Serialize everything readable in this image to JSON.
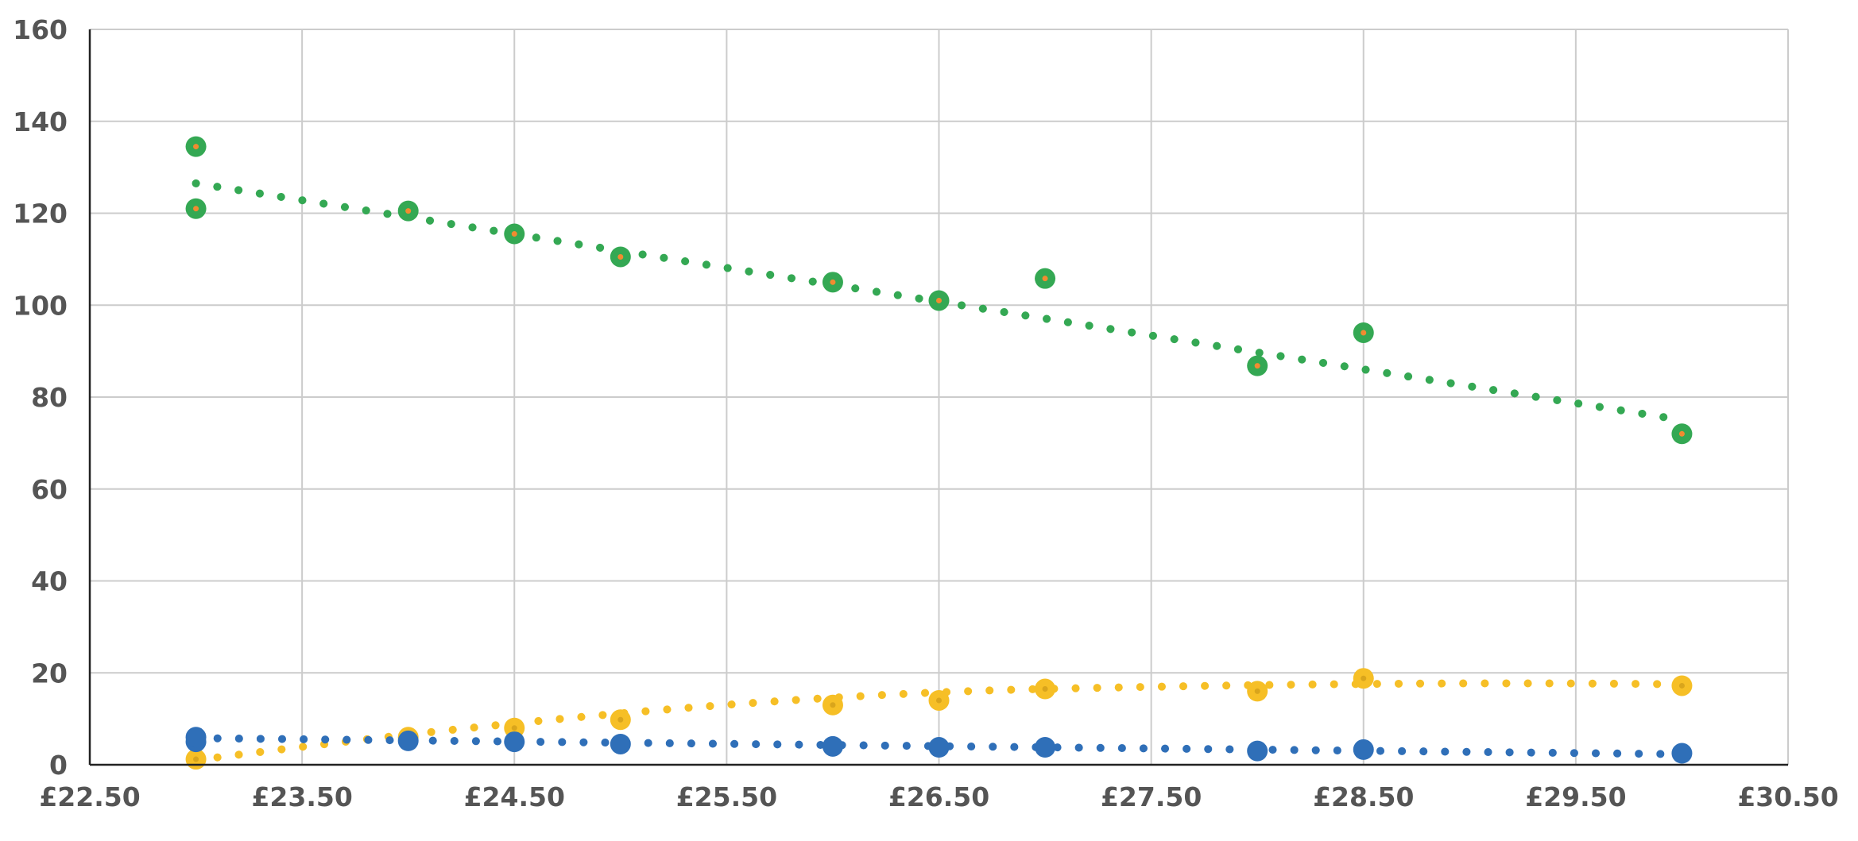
{
  "chart_data": {
    "type": "scatter",
    "title": "",
    "xlabel": "",
    "ylabel": "",
    "xlim": [
      22.5,
      30.5
    ],
    "ylim": [
      0,
      160
    ],
    "x_tick_labels": [
      "£22.50",
      "£23.50",
      "£24.50",
      "£25.50",
      "£26.50",
      "£27.50",
      "£28.50",
      "£29.50",
      "£30.50"
    ],
    "y_tick_labels": [
      "0",
      "20",
      "40",
      "60",
      "80",
      "100",
      "120",
      "140",
      "160"
    ],
    "grid": true,
    "legend": "none",
    "series": [
      {
        "color": "#34a853",
        "marker_center_color": "#f28b30",
        "trendline": "dotted",
        "points": [
          {
            "x": 23.0,
            "y": 134.5
          },
          {
            "x": 23.0,
            "y": 121.0
          },
          {
            "x": 24.0,
            "y": 120.5
          },
          {
            "x": 24.5,
            "y": 115.5
          },
          {
            "x": 25.0,
            "y": 110.5
          },
          {
            "x": 26.0,
            "y": 105.0
          },
          {
            "x": 26.5,
            "y": 101.0
          },
          {
            "x": 27.0,
            "y": 105.8
          },
          {
            "x": 28.0,
            "y": 86.8
          },
          {
            "x": 28.5,
            "y": 94.0
          },
          {
            "x": 30.0,
            "y": 72.0
          }
        ],
        "trend": {
          "x_start": 23.0,
          "y_start": 126.5,
          "x_end": 30.0,
          "y_end": 75.0
        }
      },
      {
        "color": "#f6bf26",
        "marker_center_color": "#d9a51c",
        "trendline": "dotted",
        "points": [
          {
            "x": 23.0,
            "y": 1.2
          },
          {
            "x": 24.0,
            "y": 6.0
          },
          {
            "x": 24.5,
            "y": 8.0
          },
          {
            "x": 25.0,
            "y": 9.8
          },
          {
            "x": 26.0,
            "y": 13.0
          },
          {
            "x": 26.5,
            "y": 14.0
          },
          {
            "x": 27.0,
            "y": 16.5
          },
          {
            "x": 28.0,
            "y": 16.0
          },
          {
            "x": 28.5,
            "y": 18.8
          },
          {
            "x": 30.0,
            "y": 17.2
          }
        ],
        "trend": {
          "x_start": 23.0,
          "y_start": 1.0,
          "x_mid": 27.0,
          "y_mid": 16.5,
          "x_end": 30.0,
          "y_end": 17.5
        }
      },
      {
        "color": "#2f6fb8",
        "marker_center_color": "#2f6fb8",
        "trendline": "dotted",
        "points": [
          {
            "x": 23.0,
            "y": 5.0
          },
          {
            "x": 23.0,
            "y": 6.0
          },
          {
            "x": 24.0,
            "y": 5.2
          },
          {
            "x": 24.5,
            "y": 5.0
          },
          {
            "x": 25.0,
            "y": 4.5
          },
          {
            "x": 26.0,
            "y": 4.0
          },
          {
            "x": 26.5,
            "y": 3.8
          },
          {
            "x": 27.0,
            "y": 3.8
          },
          {
            "x": 28.0,
            "y": 3.0
          },
          {
            "x": 28.5,
            "y": 3.3
          },
          {
            "x": 30.0,
            "y": 2.5
          }
        ],
        "trend": {
          "x_start": 23.0,
          "y_start": 5.8,
          "x_end": 30.0,
          "y_end": 2.3
        }
      }
    ]
  }
}
